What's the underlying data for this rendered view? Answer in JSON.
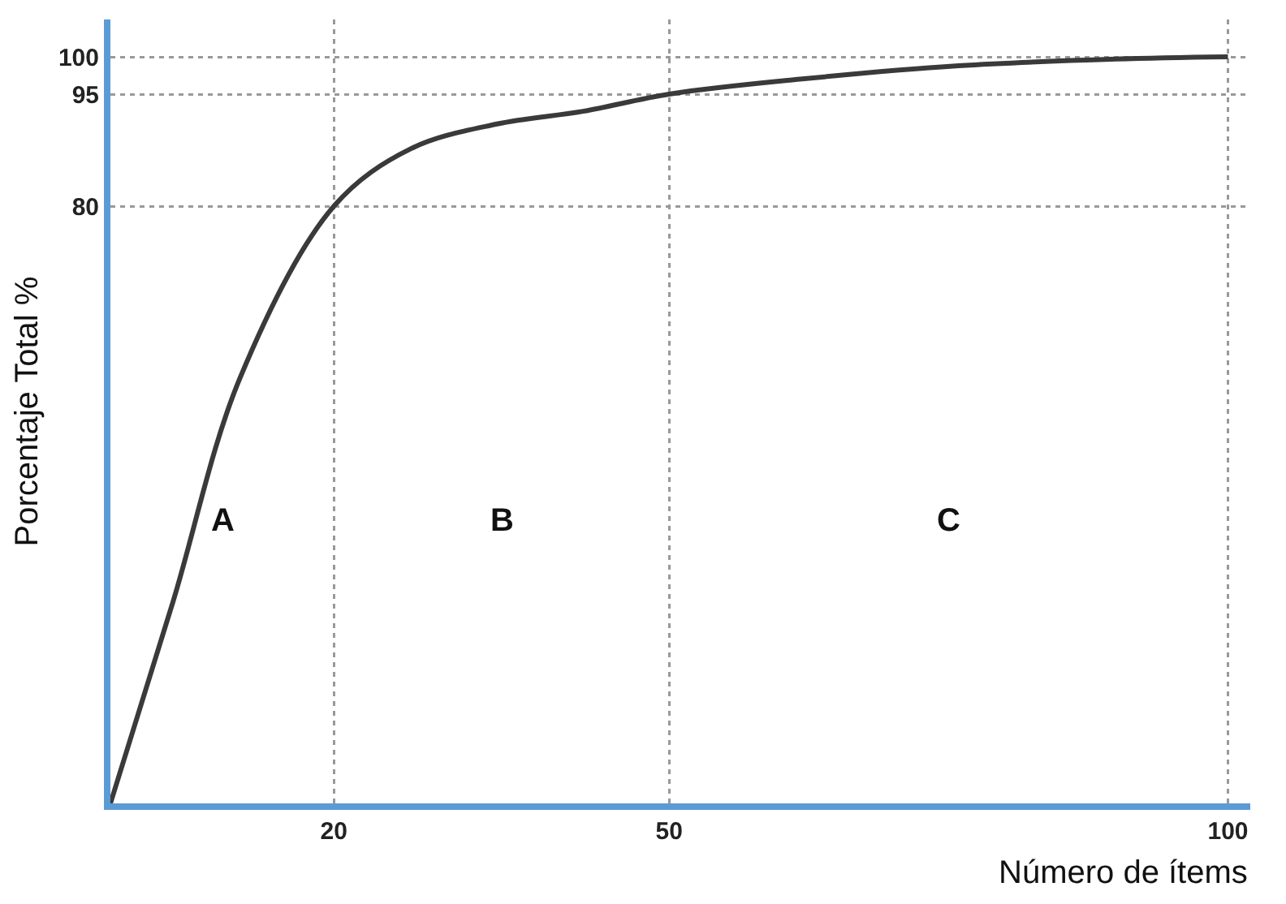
{
  "chart_data": {
    "type": "line",
    "xlabel": "Número de ítems",
    "ylabel": "Porcentaje Total %",
    "x": [
      0,
      5.6,
      11.6,
      20,
      26.9,
      34.6,
      42.3,
      50,
      61.7,
      75.9,
      90,
      100
    ],
    "series": [
      {
        "color": "#3a3a3a",
        "values": [
          0,
          27,
          57,
          80,
          87.7,
          91,
          92.7,
          95,
          97,
          98.8,
          99.7,
          100
        ]
      }
    ],
    "xlim": [
      0,
      102
    ],
    "ylim": [
      0,
      105
    ],
    "xticks": [
      20,
      50,
      100
    ],
    "yticks": [
      80,
      95,
      100
    ],
    "grid": true,
    "marker": "none",
    "line_style": "solid",
    "annotations": [
      "A",
      "B",
      "C"
    ]
  }
}
